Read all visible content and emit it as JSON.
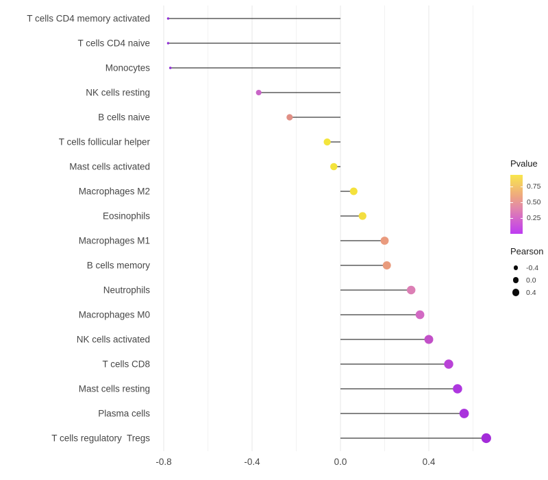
{
  "chart_data": {
    "type": "lollipop",
    "title": "",
    "xlabel": "",
    "ylabel": "",
    "x_tick_labels": [
      "-0.8",
      "-0.4",
      "0.0",
      "0.4"
    ],
    "x_ticks": [
      -0.8,
      -0.4,
      0.0,
      0.4
    ],
    "x_minor_ticks": [
      -0.6,
      -0.2,
      0.2,
      0.6
    ],
    "xlim": [
      -0.81,
      0.69
    ],
    "baseline": 0.0,
    "grid": "major-and-minor",
    "legend_position": "right",
    "categories": [
      "T cells CD4 memory activated",
      "T cells CD4 naive",
      "Monocytes",
      "NK cells resting",
      "B cells naive",
      "T cells follicular helper",
      "Mast cells activated",
      "Macrophages M2",
      "Eosinophils",
      "Macrophages M1",
      "B cells memory",
      "Neutrophils",
      "Macrophages M0",
      "NK cells activated",
      "T cells CD8",
      "Mast cells resting",
      "Plasma cells",
      "T cells regulatory  Tregs"
    ],
    "points": [
      {
        "label": "T cells CD4 memory activated",
        "pearson": -0.78,
        "color": "#9130D6"
      },
      {
        "label": "T cells CD4 naive",
        "pearson": -0.78,
        "color": "#9130D6"
      },
      {
        "label": "Monocytes",
        "pearson": -0.77,
        "color": "#9130D6"
      },
      {
        "label": "NK cells resting",
        "pearson": -0.37,
        "color": "#C965C7"
      },
      {
        "label": "B cells naive",
        "pearson": -0.23,
        "color": "#E08F85"
      },
      {
        "label": "T cells follicular helper",
        "pearson": -0.06,
        "color": "#F3E53C"
      },
      {
        "label": "Mast cells activated",
        "pearson": -0.03,
        "color": "#F3E33C"
      },
      {
        "label": "Macrophages M2",
        "pearson": 0.06,
        "color": "#F4E13C"
      },
      {
        "label": "Eosinophils",
        "pearson": 0.1,
        "color": "#F3DE40"
      },
      {
        "label": "Macrophages M1",
        "pearson": 0.2,
        "color": "#EA9B7E"
      },
      {
        "label": "B cells memory",
        "pearson": 0.21,
        "color": "#E99B7D"
      },
      {
        "label": "Neutrophils",
        "pearson": 0.32,
        "color": "#DC7FB5"
      },
      {
        "label": "Macrophages M0",
        "pearson": 0.36,
        "color": "#D269C3"
      },
      {
        "label": "NK cells activated",
        "pearson": 0.4,
        "color": "#C250C8"
      },
      {
        "label": "T cells CD8",
        "pearson": 0.49,
        "color": "#B942D7"
      },
      {
        "label": "Mast cells resting",
        "pearson": 0.53,
        "color": "#AE37DF"
      },
      {
        "label": "Plasma cells",
        "pearson": 0.56,
        "color": "#A932DC"
      },
      {
        "label": "T cells regulatory  Tregs",
        "pearson": 0.66,
        "color": "#A32CD9"
      }
    ],
    "legends": {
      "pvalue": {
        "title": "Pvalue",
        "tick_labels": [
          "0.75",
          "0.50",
          "0.25"
        ],
        "tick_values": [
          0.75,
          0.5,
          0.25
        ],
        "domain": [
          0.0,
          0.94
        ],
        "gradient_top_color": "#F8E64C",
        "gradient_mid_color": "#EEA780",
        "gradient_bottom_color": "#BE3BF2"
      },
      "pearson": {
        "title": "Pearson",
        "items": [
          {
            "label": "-0.4",
            "value": -0.4
          },
          {
            "label": "0.0",
            "value": 0.0
          },
          {
            "label": "0.4",
            "value": 0.4
          }
        ],
        "dot_color": "#0a0a0a"
      }
    },
    "style": {
      "stem_color": "#3a3a3a",
      "major_grid_color": "#e7e7e7",
      "minor_grid_color": "#f2f2f2",
      "axis_text_color": "#474747",
      "background": "#ffffff"
    }
  }
}
